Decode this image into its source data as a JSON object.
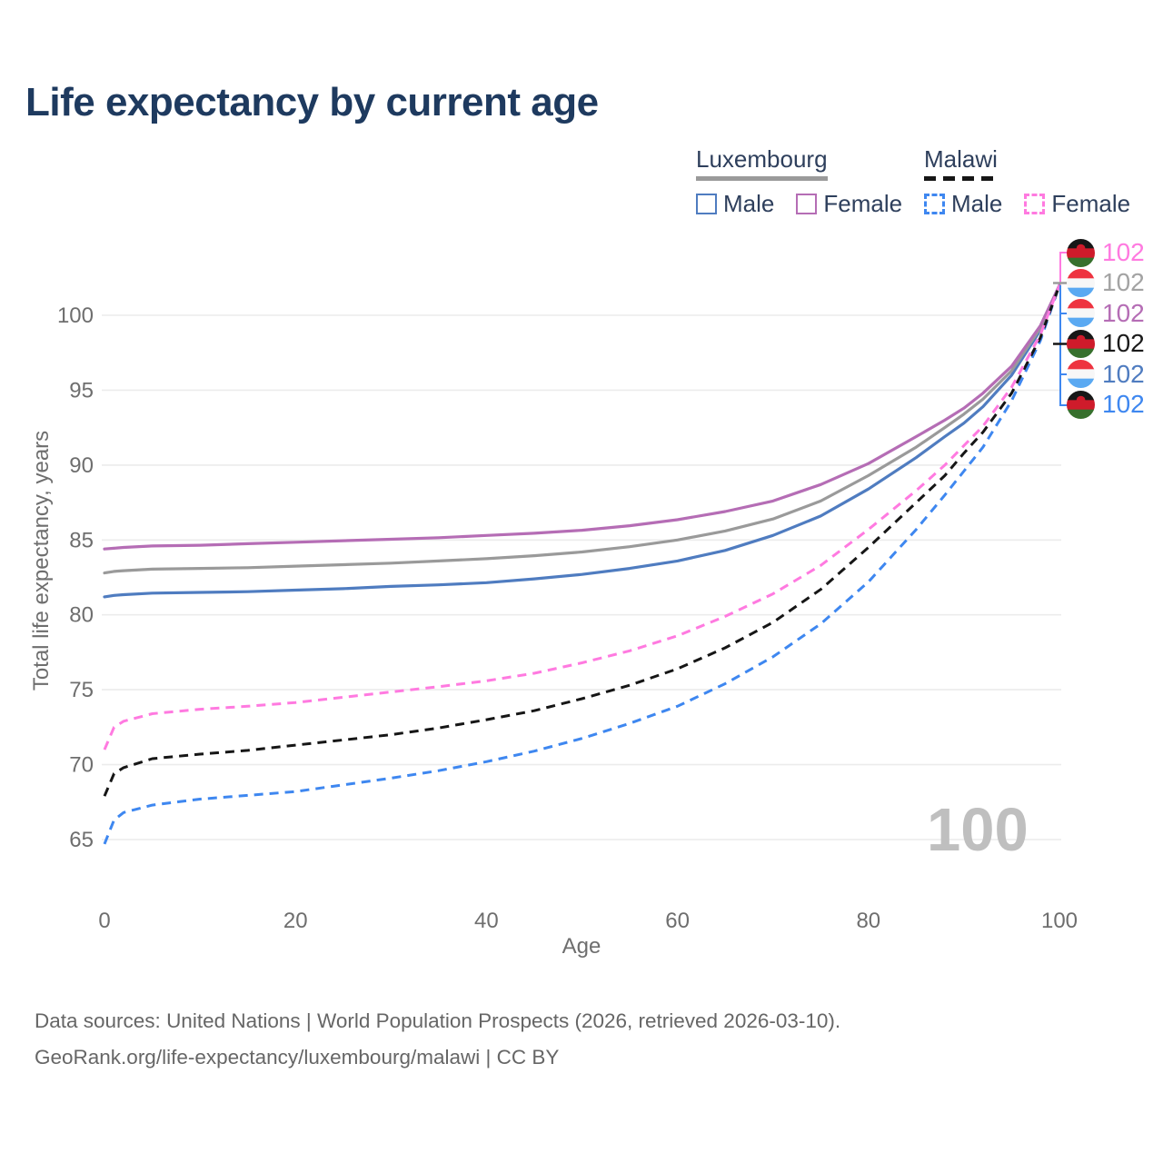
{
  "title": "Life expectancy by current age",
  "watermark": "100",
  "legend": {
    "groups": [
      {
        "name": "Luxembourg",
        "underline_style": "solid",
        "underline_color": "#9a9a9a",
        "items": [
          {
            "label": "Male",
            "color": "#4f7cc0",
            "dashed": false
          },
          {
            "label": "Female",
            "color": "#b56db5",
            "dashed": false
          }
        ]
      },
      {
        "name": "Malawi",
        "underline_style": "dashed",
        "underline_color": "#161616",
        "items": [
          {
            "label": "Male",
            "color": "#3e87f0",
            "dashed": true
          },
          {
            "label": "Female",
            "color": "#ff7ae0",
            "dashed": true
          }
        ]
      }
    ]
  },
  "chart_data": {
    "type": "line",
    "title": "Life expectancy by current age",
    "xlabel": "Age",
    "ylabel": "Total life expectancy, years",
    "xlim": [
      0,
      100
    ],
    "ylim": [
      63.5,
      103.5
    ],
    "xticks": [
      0,
      20,
      40,
      60,
      80,
      100
    ],
    "yticks": [
      65,
      70,
      75,
      80,
      85,
      90,
      95,
      100
    ],
    "grid": "horizontal light-gray gridlines, no axis lines",
    "legend_position": "top-right",
    "ages": [
      0,
      1,
      2,
      5,
      10,
      15,
      20,
      25,
      30,
      35,
      40,
      45,
      50,
      55,
      60,
      65,
      70,
      75,
      80,
      85,
      88,
      90,
      92,
      95,
      98,
      100
    ],
    "series": [
      {
        "name": "Luxembourg Male",
        "country": "Luxembourg",
        "sex": "Male",
        "color": "#4f7cc0",
        "dash": "solid",
        "end_value": 102,
        "values": [
          81.2,
          81.3,
          81.35,
          81.45,
          81.5,
          81.55,
          81.65,
          81.75,
          81.9,
          82.0,
          82.15,
          82.4,
          82.7,
          83.1,
          83.6,
          84.3,
          85.3,
          86.6,
          88.4,
          90.5,
          91.9,
          92.8,
          93.9,
          96.0,
          99.0,
          102
        ]
      },
      {
        "name": "Luxembourg Both sexes",
        "country": "Luxembourg",
        "sex": "Both",
        "color": "#9a9a9a",
        "dash": "solid",
        "end_value": 102,
        "values": [
          82.8,
          82.9,
          82.95,
          83.05,
          83.1,
          83.15,
          83.25,
          83.35,
          83.45,
          83.6,
          83.75,
          83.95,
          84.2,
          84.55,
          85.0,
          85.6,
          86.4,
          87.6,
          89.3,
          91.2,
          92.5,
          93.4,
          94.4,
          96.3,
          99.15,
          102
        ]
      },
      {
        "name": "Luxembourg Female",
        "country": "Luxembourg",
        "sex": "Female",
        "color": "#b56db5",
        "dash": "solid",
        "end_value": 102,
        "values": [
          84.4,
          84.45,
          84.5,
          84.6,
          84.65,
          84.75,
          84.85,
          84.95,
          85.05,
          85.15,
          85.3,
          85.45,
          85.65,
          85.95,
          86.35,
          86.9,
          87.6,
          88.7,
          90.1,
          91.9,
          93.0,
          93.8,
          94.8,
          96.6,
          99.3,
          102
        ]
      },
      {
        "name": "Malawi Male",
        "country": "Malawi",
        "sex": "Male",
        "color": "#3e87f0",
        "dash": "dashed",
        "end_value": 102,
        "values": [
          64.7,
          66.3,
          66.8,
          67.3,
          67.7,
          67.95,
          68.2,
          68.65,
          69.1,
          69.6,
          70.2,
          70.9,
          71.75,
          72.75,
          73.9,
          75.4,
          77.2,
          79.4,
          82.2,
          85.7,
          88.0,
          89.6,
          91.2,
          94.3,
          98.3,
          102
        ]
      },
      {
        "name": "Malawi Both sexes",
        "country": "Malawi",
        "sex": "Both",
        "color": "#161616",
        "dash": "dashed",
        "end_value": 102,
        "values": [
          67.9,
          69.4,
          69.8,
          70.4,
          70.7,
          70.95,
          71.3,
          71.65,
          72.0,
          72.45,
          73.0,
          73.6,
          74.4,
          75.3,
          76.4,
          77.8,
          79.5,
          81.7,
          84.5,
          87.5,
          89.3,
          90.8,
          92.2,
          94.8,
          98.5,
          102
        ]
      },
      {
        "name": "Malawi Female",
        "country": "Malawi",
        "sex": "Female",
        "color": "#ff7ae0",
        "dash": "dashed",
        "end_value": 102,
        "values": [
          71.0,
          72.5,
          72.9,
          73.4,
          73.7,
          73.9,
          74.15,
          74.5,
          74.85,
          75.2,
          75.6,
          76.1,
          76.8,
          77.6,
          78.6,
          79.9,
          81.4,
          83.3,
          85.7,
          88.3,
          90.0,
          91.3,
          92.6,
          95.2,
          98.7,
          102
        ]
      }
    ]
  },
  "end_labels": [
    {
      "flag": "malawi",
      "series": "Malawi Female",
      "value": "102",
      "color": "#ff7ae0"
    },
    {
      "flag": "luxembourg",
      "series": "Luxembourg Both sexes",
      "value": "102",
      "color": "#a3a3a3"
    },
    {
      "flag": "luxembourg",
      "series": "Luxembourg Female",
      "value": "102",
      "color": "#b56db5"
    },
    {
      "flag": "malawi",
      "series": "Malawi Both sexes",
      "value": "102",
      "color": "#1a1a1a"
    },
    {
      "flag": "luxembourg",
      "series": "Luxembourg Male",
      "value": "102",
      "color": "#4f7cc0"
    },
    {
      "flag": "malawi",
      "series": "Malawi Male",
      "value": "102",
      "color": "#3e87f0"
    }
  ],
  "flags": {
    "luxembourg": {
      "stripes": [
        "#ee3340",
        "#f7f7f7",
        "#5aa9f2"
      ]
    },
    "malawi": {
      "stripes": [
        "#171717",
        "#cf1b2b",
        "#37702d"
      ],
      "sun": "#cf1b2b"
    }
  },
  "leader": {
    "pink": "#ff7ae0",
    "blue": "#3e87f0",
    "gray": "#9a9a9a",
    "black": "#161616"
  },
  "palette": {
    "title_text": "#1e3a5f",
    "legend_text": "#2e3f5c",
    "axis_text": "#6e6e6e",
    "gridline": "#ececec",
    "watermark_text": "#bfbfbf",
    "footer_text": "#666666"
  },
  "footer": {
    "line1": "Data sources: United Nations | World Population Prospects (2026, retrieved 2026-03-10).",
    "line2": "GeoRank.org/life-expectancy/luxembourg/malawi | CC BY"
  }
}
